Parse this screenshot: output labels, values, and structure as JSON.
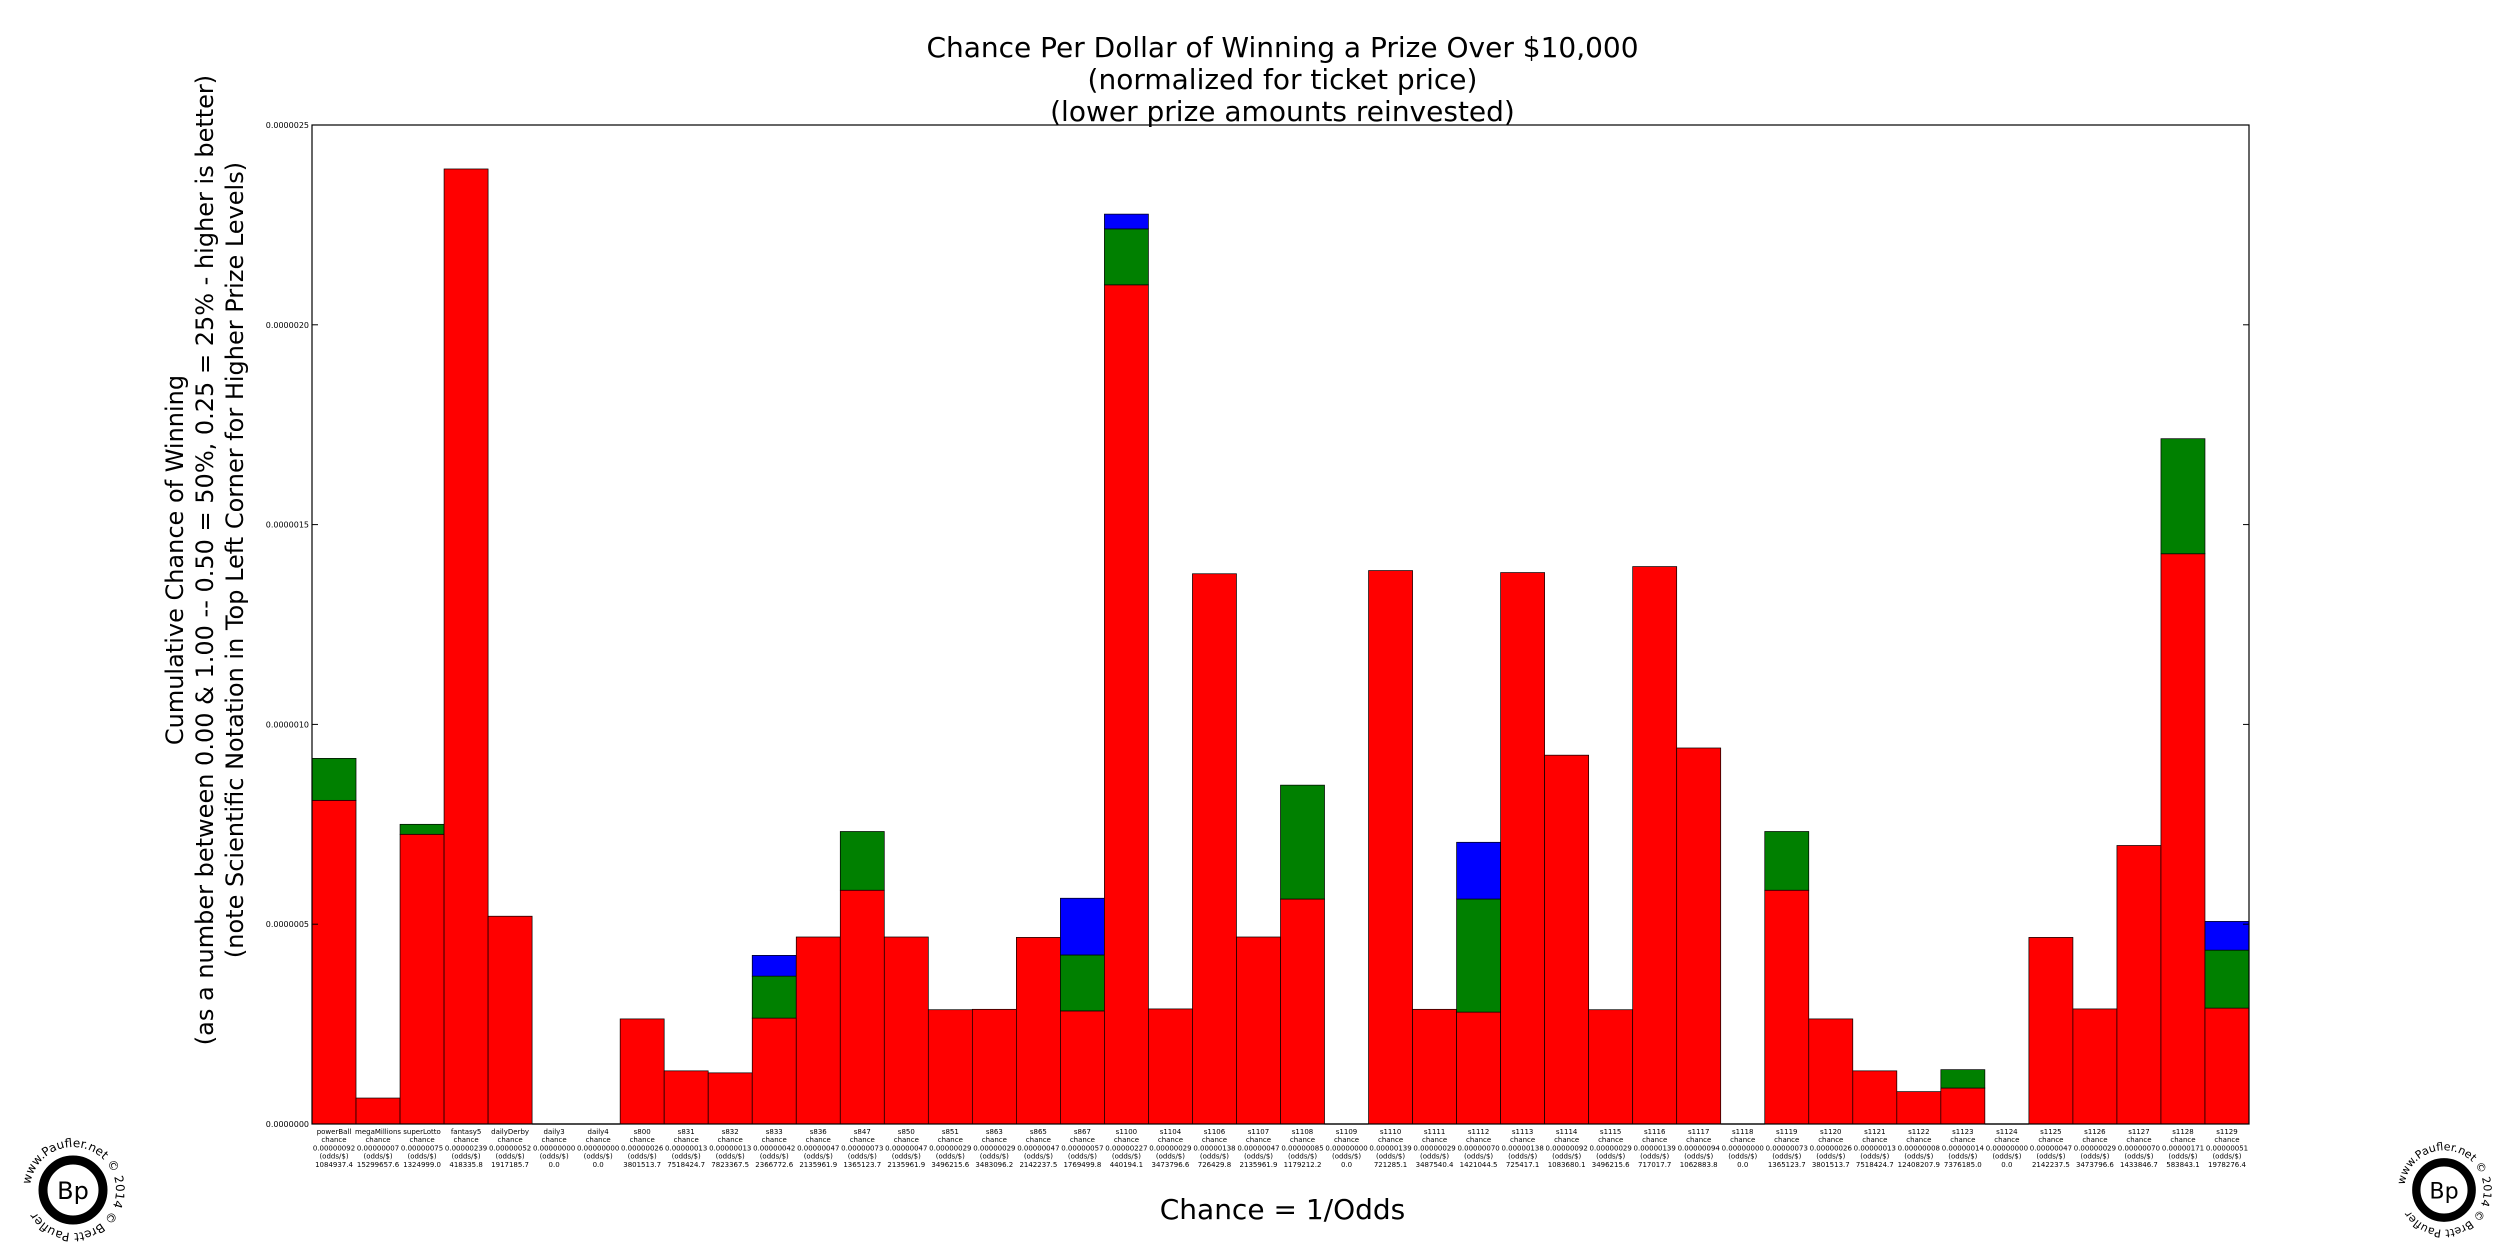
{
  "chart_data": {
    "type": "bar",
    "stacked": true,
    "title": [
      "Chance Per Dollar of Winning a Prize Over $10,000",
      "(normalized for ticket price)",
      "(lower prize amounts reinvested)"
    ],
    "xlabel": "Chance = 1/Odds",
    "ylabel": [
      "Cumulative Chance of Winning",
      "(as a number between 0.00 & 1.00 -- 0.50 = 50%, 0.25 = 25% - higher is better)",
      "(note Scientific Notation in Top Left Corner for Higher Prize Levels)"
    ],
    "ylim": [
      0,
      2.5e-06
    ],
    "yticks": [
      "0.0000000",
      "0.0000005",
      "0.0000010",
      "0.0000015",
      "0.0000020",
      "0.0000025"
    ],
    "grid": false,
    "series_colors": [
      "#ff0000",
      "#008000",
      "#0000ff"
    ],
    "categories": [
      {
        "name": "powerBall",
        "chance": "0.00000092",
        "odds": "1084937.4",
        "r": 8.1e-07,
        "g": 1.05e-07,
        "b": 0
      },
      {
        "name": "megaMillions",
        "chance": "0.00000007",
        "odds": "15299657.6",
        "r": 6.5e-08,
        "g": 0,
        "b": 0
      },
      {
        "name": "superLotto",
        "chance": "0.00000075",
        "odds": "1324999.0",
        "r": 7.25e-07,
        "g": 2.5e-08,
        "b": 0
      },
      {
        "name": "fantasy5",
        "chance": "0.00000239",
        "odds": "418335.8",
        "r": 2.39e-06,
        "g": 0,
        "b": 0
      },
      {
        "name": "dailyDerby",
        "chance": "0.00000052",
        "odds": "1917185.7",
        "r": 5.2e-07,
        "g": 0,
        "b": 0
      },
      {
        "name": "daily3",
        "chance": "0.00000000",
        "odds": "0.0",
        "r": 0,
        "g": 0,
        "b": 0
      },
      {
        "name": "daily4",
        "chance": "0.00000000",
        "odds": "0.0",
        "r": 0,
        "g": 0,
        "b": 0
      },
      {
        "name": "s800",
        "chance": "0.00000026",
        "odds": "3801513.7",
        "r": 2.63e-07,
        "g": 0,
        "b": 0
      },
      {
        "name": "s831",
        "chance": "0.00000013",
        "odds": "7518424.7",
        "r": 1.33e-07,
        "g": 0,
        "b": 0
      },
      {
        "name": "s832",
        "chance": "0.00000013",
        "odds": "7823367.5",
        "r": 1.28e-07,
        "g": 0,
        "b": 0
      },
      {
        "name": "s833",
        "chance": "0.00000042",
        "odds": "2366772.6",
        "r": 2.65e-07,
        "g": 1.05e-07,
        "b": 5.2e-08
      },
      {
        "name": "s836",
        "chance": "0.00000047",
        "odds": "2135961.9",
        "r": 4.68e-07,
        "g": 0,
        "b": 0
      },
      {
        "name": "s847",
        "chance": "0.00000073",
        "odds": "1365123.7",
        "r": 5.85e-07,
        "g": 1.47e-07,
        "b": 0
      },
      {
        "name": "s850",
        "chance": "0.00000047",
        "odds": "2135961.9",
        "r": 4.68e-07,
        "g": 0,
        "b": 0
      },
      {
        "name": "s851",
        "chance": "0.00000029",
        "odds": "3496215.6",
        "r": 2.86e-07,
        "g": 0,
        "b": 0
      },
      {
        "name": "s863",
        "chance": "0.00000029",
        "odds": "3483096.2",
        "r": 2.87e-07,
        "g": 0,
        "b": 0
      },
      {
        "name": "s865",
        "chance": "0.00000047",
        "odds": "2142237.5",
        "r": 4.67e-07,
        "g": 0,
        "b": 0
      },
      {
        "name": "s867",
        "chance": "0.00000057",
        "odds": "1769499.8",
        "r": 2.83e-07,
        "g": 1.4e-07,
        "b": 1.42e-07
      },
      {
        "name": "s1100",
        "chance": "0.00000227",
        "odds": "440194.1",
        "r": 2.1e-06,
        "g": 1.4e-07,
        "b": 3.7e-08
      },
      {
        "name": "s1104",
        "chance": "0.00000029",
        "odds": "3473796.6",
        "r": 2.88e-07,
        "g": 0,
        "b": 0
      },
      {
        "name": "s1106",
        "chance": "0.00000138",
        "odds": "726429.8",
        "r": 1.377e-06,
        "g": 0,
        "b": 0
      },
      {
        "name": "s1107",
        "chance": "0.00000047",
        "odds": "2135961.9",
        "r": 4.68e-07,
        "g": 0,
        "b": 0
      },
      {
        "name": "s1108",
        "chance": "0.00000085",
        "odds": "1179212.2",
        "r": 5.63e-07,
        "g": 2.85e-07,
        "b": 0
      },
      {
        "name": "s1109",
        "chance": "0.00000000",
        "odds": "0.0",
        "r": 0,
        "g": 0,
        "b": 0
      },
      {
        "name": "s1110",
        "chance": "0.00000139",
        "odds": "721285.1",
        "r": 1.385e-06,
        "g": 0,
        "b": 0
      },
      {
        "name": "s1111",
        "chance": "0.00000029",
        "odds": "3487540.4",
        "r": 2.87e-07,
        "g": 0,
        "b": 0
      },
      {
        "name": "s1112",
        "chance": "0.00000070",
        "odds": "1421044.5",
        "r": 2.8e-07,
        "g": 2.83e-07,
        "b": 1.42e-07
      },
      {
        "name": "s1113",
        "chance": "0.00000138",
        "odds": "725417.1",
        "r": 1.38e-06,
        "g": 0,
        "b": 0
      },
      {
        "name": "s1114",
        "chance": "0.00000092",
        "odds": "1083680.1",
        "r": 9.23e-07,
        "g": 0,
        "b": 0
      },
      {
        "name": "s1115",
        "chance": "0.00000029",
        "odds": "3496215.6",
        "r": 2.86e-07,
        "g": 0,
        "b": 0
      },
      {
        "name": "s1116",
        "chance": "0.00000139",
        "odds": "717017.7",
        "r": 1.395e-06,
        "g": 0,
        "b": 0
      },
      {
        "name": "s1117",
        "chance": "0.00000094",
        "odds": "1062883.8",
        "r": 9.41e-07,
        "g": 0,
        "b": 0
      },
      {
        "name": "s1118",
        "chance": "0.00000000",
        "odds": "0.0",
        "r": 0,
        "g": 0,
        "b": 0
      },
      {
        "name": "s1119",
        "chance": "0.00000073",
        "odds": "1365123.7",
        "r": 5.85e-07,
        "g": 1.47e-07,
        "b": 0
      },
      {
        "name": "s1120",
        "chance": "0.00000026",
        "odds": "3801513.7",
        "r": 2.63e-07,
        "g": 0,
        "b": 0
      },
      {
        "name": "s1121",
        "chance": "0.00000013",
        "odds": "7518424.7",
        "r": 1.33e-07,
        "g": 0,
        "b": 0
      },
      {
        "name": "s1122",
        "chance": "0.00000008",
        "odds": "12408207.9",
        "r": 8.1e-08,
        "g": 0,
        "b": 0
      },
      {
        "name": "s1123",
        "chance": "0.00000014",
        "odds": "7376185.0",
        "r": 9e-08,
        "g": 4.6e-08,
        "b": 0
      },
      {
        "name": "s1124",
        "chance": "0.00000000",
        "odds": "0.0",
        "r": 0,
        "g": 0,
        "b": 0
      },
      {
        "name": "s1125",
        "chance": "0.00000047",
        "odds": "2142237.5",
        "r": 4.67e-07,
        "g": 0,
        "b": 0
      },
      {
        "name": "s1126",
        "chance": "0.00000029",
        "odds": "3473796.6",
        "r": 2.88e-07,
        "g": 0,
        "b": 0
      },
      {
        "name": "s1127",
        "chance": "0.00000070",
        "odds": "1433846.7",
        "r": 6.97e-07,
        "g": 0,
        "b": 0
      },
      {
        "name": "s1128",
        "chance": "0.00000171",
        "odds": "583843.1",
        "r": 1.427e-06,
        "g": 2.88e-07,
        "b": 0
      },
      {
        "name": "s1129",
        "chance": "0.00000051",
        "odds": "1978276.4",
        "r": 2.9e-07,
        "g": 1.45e-07,
        "b": 7.2e-08
      }
    ],
    "tick_label_lines": [
      "chance",
      "(odds/$)"
    ]
  },
  "watermark": {
    "initials": "Bp",
    "ring_text": "www.Paufler.net © 2014 © Brett Paufler"
  }
}
